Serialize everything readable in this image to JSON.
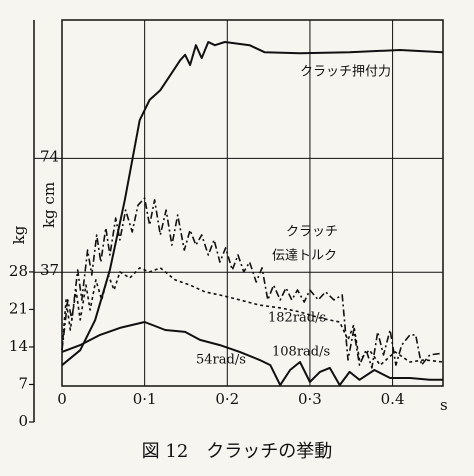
{
  "chart_data": {
    "type": "line",
    "caption": "図 12　クラッチの挙動",
    "annotations": [
      "クラッチ",
      "伝達トルク"
    ],
    "x_label": "s",
    "y_label": "kg cm",
    "y2_label": "kg",
    "xlim": [
      0,
      0.461
    ],
    "xticks": [
      0,
      {
        "value": 0.1,
        "label": "0·1"
      },
      {
        "value": 0.2,
        "label": "0·2"
      },
      {
        "value": 0.3,
        "label": "0·3"
      },
      {
        "value": 0.4,
        "label": "0.4"
      }
    ],
    "ylim": [
      0,
      119
    ],
    "yticks": [
      37,
      74
    ],
    "y2lim": [
      0,
      75
    ],
    "y2ticks": [
      0,
      7,
      14,
      21,
      28
    ],
    "grid": true,
    "series": [
      {
        "name": "182rad/s",
        "color": "#111111",
        "style": "dashdot",
        "x": [
          0,
          0.007,
          0.012,
          0.019,
          0.024,
          0.031,
          0.036,
          0.042,
          0.047,
          0.053,
          0.058,
          0.065,
          0.07,
          0.077,
          0.085,
          0.092,
          0.1,
          0.106,
          0.112,
          0.119,
          0.126,
          0.133,
          0.14,
          0.148,
          0.155,
          0.162,
          0.169,
          0.177,
          0.184,
          0.191,
          0.198,
          0.206,
          0.213,
          0.22,
          0.227,
          0.235,
          0.242,
          0.249,
          0.256,
          0.264,
          0.271,
          0.278,
          0.285,
          0.293,
          0.3,
          0.31,
          0.319,
          0.329,
          0.339,
          0.346,
          0.353,
          0.36,
          0.368,
          0.375,
          0.382,
          0.389,
          0.397,
          0.404,
          0.411,
          0.421,
          0.428,
          0.435,
          0.445,
          0.461
        ],
        "values": [
          11.7,
          28.0,
          21.5,
          37.7,
          28.0,
          44.2,
          36.1,
          49.1,
          40.3,
          51.4,
          42.6,
          54.6,
          47.5,
          57.2,
          50.1,
          58.8,
          61.1,
          52.3,
          60.5,
          49.1,
          57.2,
          45.8,
          55.6,
          44.2,
          50.7,
          45.8,
          49.1,
          42.6,
          47.5,
          40.3,
          44.9,
          37.7,
          42.6,
          37.1,
          40.3,
          33.8,
          38.4,
          28.0,
          32.8,
          28.0,
          31.9,
          28.0,
          31.2,
          27.3,
          31.2,
          28.0,
          30.6,
          28.0,
          29.6,
          8.5,
          18.2,
          6.8,
          11.7,
          5.9,
          17.6,
          10.1,
          18.2,
          6.8,
          13.3,
          16.6,
          16.6,
          6.8,
          10.1,
          10.7
        ]
      },
      {
        "name": "108rad/s",
        "color": "#111111",
        "style": "dashed",
        "x": [
          0,
          0.005,
          0.01,
          0.017,
          0.022,
          0.029,
          0.034,
          0.041,
          0.048,
          0.056,
          0.063,
          0.07,
          0.082,
          0.094,
          0.106,
          0.119,
          0.137,
          0.155,
          0.173,
          0.191,
          0.215,
          0.239,
          0.264,
          0.288,
          0.312,
          0.336,
          0.346,
          0.353,
          0.36,
          0.372,
          0.385,
          0.403,
          0.421,
          0.439,
          0.461
        ],
        "values": [
          11.7,
          28.0,
          18.2,
          31.2,
          21.5,
          32.8,
          24.7,
          34.5,
          28.0,
          36.1,
          31.2,
          37.1,
          35.1,
          38.4,
          37.1,
          38.4,
          34.5,
          32.8,
          30.6,
          29.6,
          28.0,
          26.3,
          25.4,
          24.1,
          22.1,
          20.8,
          15.0,
          19.8,
          8.5,
          11.7,
          6.8,
          11.1,
          7.8,
          8.5,
          7.8
        ]
      },
      {
        "name": "54rad/s",
        "color": "#111111",
        "style": "solid",
        "x": [
          0,
          0.022,
          0.046,
          0.07,
          0.1,
          0.125,
          0.149,
          0.167,
          0.191,
          0.215,
          0.239,
          0.252,
          0.264,
          0.276,
          0.288,
          0.3,
          0.312,
          0.324,
          0.336,
          0.348,
          0.36,
          0.378,
          0.397,
          0.421,
          0.445,
          0.461
        ],
        "values": [
          11.1,
          13.3,
          16.6,
          18.9,
          20.8,
          18.2,
          17.6,
          15.0,
          13.3,
          11.1,
          8.5,
          6.8,
          0.3,
          5.2,
          7.8,
          1.3,
          4.6,
          5.9,
          0.3,
          4.6,
          2.0,
          5.2,
          2.6,
          2.6,
          2.0,
          2.0
        ]
      },
      {
        "name": "クラッチ押付力",
        "color": "#111111",
        "style": "solid",
        "axis": "y2",
        "x": [
          0,
          0.022,
          0.04,
          0.058,
          0.076,
          0.094,
          0.106,
          0.119,
          0.131,
          0.143,
          0.149,
          0.155,
          0.162,
          0.169,
          0.177,
          0.185,
          0.197,
          0.227,
          0.245,
          0.288,
          0.348,
          0.409,
          0.461
        ],
        "values": [
          10.6,
          13.4,
          19.0,
          28.4,
          41.4,
          56.3,
          60.1,
          61.9,
          64.7,
          67.5,
          68.5,
          66.6,
          70.3,
          67.9,
          70.9,
          70.3,
          70.9,
          70.3,
          69.0,
          68.8,
          69.0,
          69.4,
          69.0
        ]
      }
    ]
  }
}
